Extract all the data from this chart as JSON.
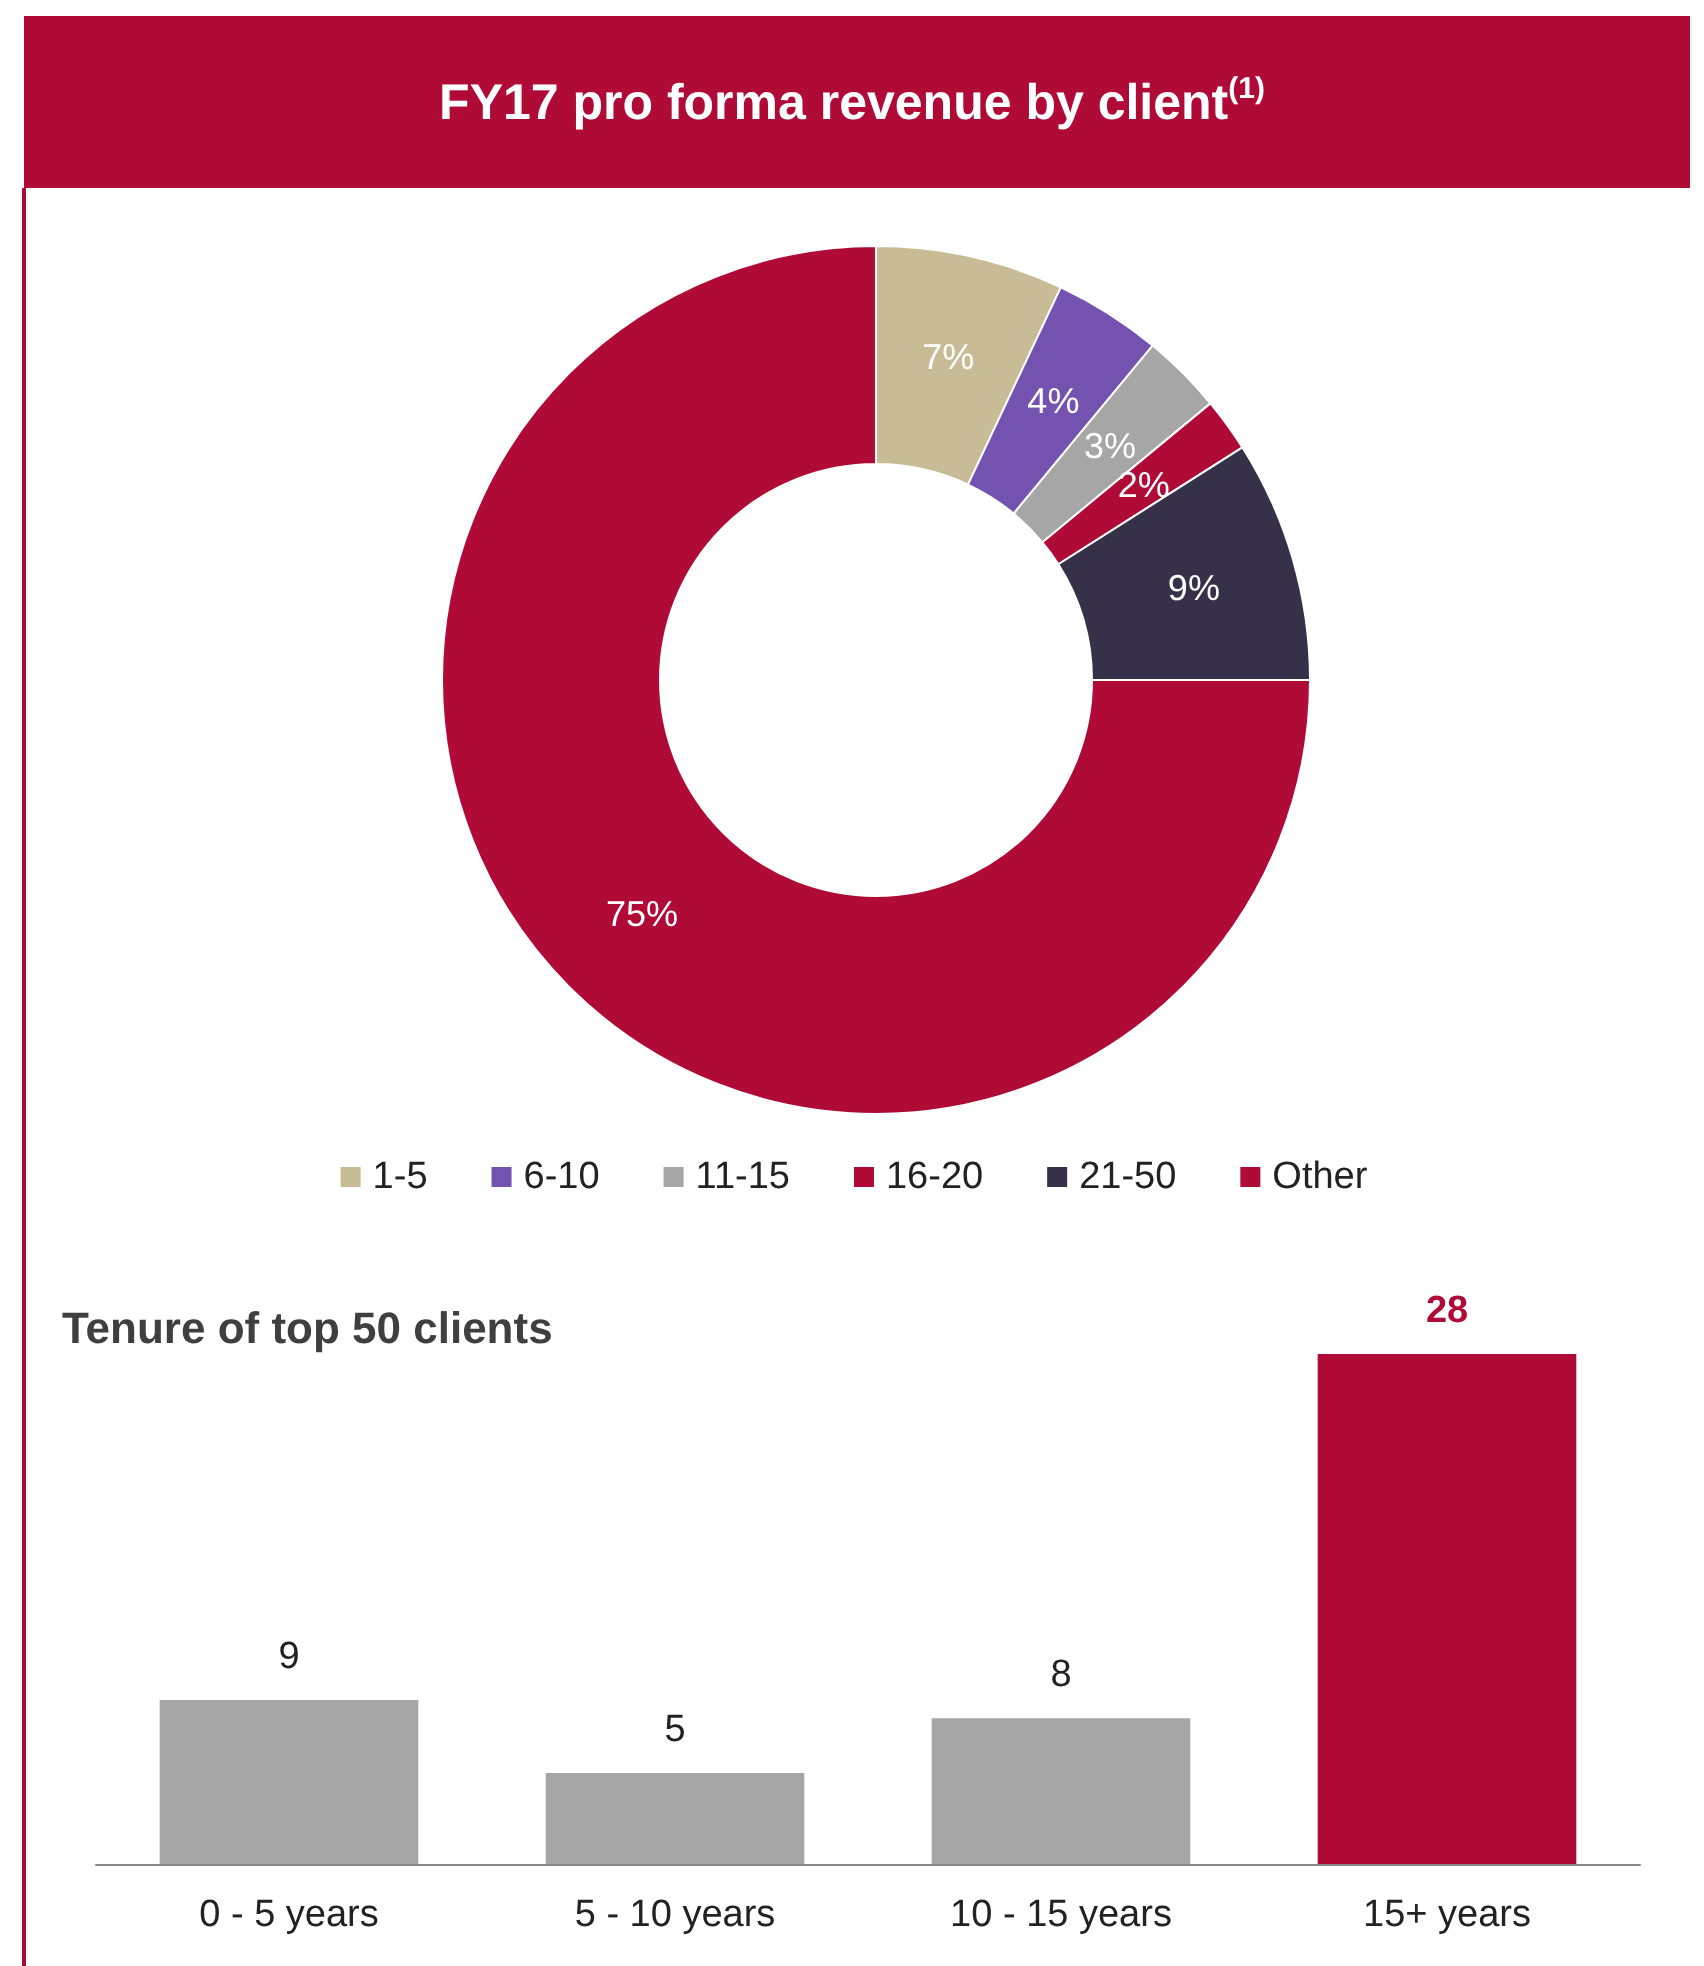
{
  "chart_data": [
    {
      "type": "donut",
      "title": "FY17 pro forma revenue by client$^{(1)}$",
      "categories": [
        "1-5",
        "6-10",
        "11-15",
        "16-20",
        "21-50",
        "Other"
      ],
      "values": [
        7,
        4,
        3,
        2,
        9,
        75
      ],
      "colors": [
        "#c8bc96",
        "#7452b0",
        "#a6a6a6",
        "#b00a36",
        "#363048",
        "#b00a36"
      ],
      "value_labels": [
        "7%",
        "4%",
        "3%",
        "2%",
        "9%",
        "75%"
      ],
      "legend": "bottom"
    },
    {
      "type": "bar",
      "title": "Tenure of top 50 clients",
      "categories": [
        "0 - 5 years",
        "5 - 10 years",
        "10 - 15 years",
        "15+ years"
      ],
      "values": [
        9,
        5,
        8,
        28
      ],
      "colors": [
        "#a6a6a6",
        "#a6a6a6",
        "#a6a6a6",
        "#b00a36"
      ],
      "data_labels": true
    }
  ]
}
